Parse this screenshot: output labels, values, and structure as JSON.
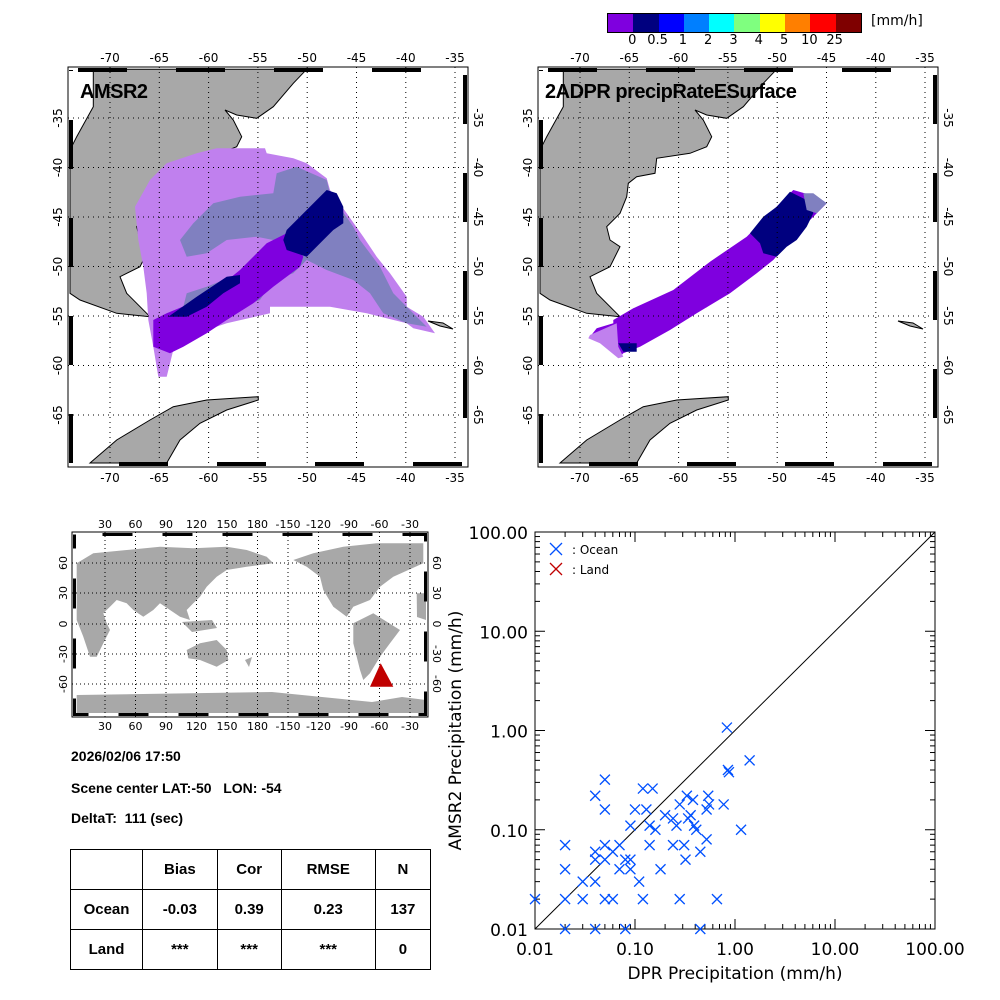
{
  "colorbar": {
    "colors": [
      "#7f00df",
      "#00007f",
      "#0000ff",
      "#007fff",
      "#00ffff",
      "#7fff7f",
      "#ffff00",
      "#ff7f00",
      "#ff0000",
      "#7f0000"
    ],
    "labels": [
      "0",
      "0.5",
      "1",
      "2",
      "3",
      "4",
      "5",
      "10",
      "25"
    ],
    "unit": "[mm/h]"
  },
  "maps": {
    "left_title": "AMSR2",
    "right_title": "2ADPR precipRateESurface",
    "lon_labels": [
      "-70",
      "-65",
      "-60",
      "-55",
      "-50",
      "-45",
      "-40",
      "-35"
    ],
    "lat_labels": [
      "-35",
      "-40",
      "-45",
      "-50",
      "-55",
      "-60",
      "-65"
    ],
    "land_color": "#a8a8a8"
  },
  "world_map": {
    "lon_labels": [
      "30",
      "60",
      "90",
      "120",
      "150",
      "180",
      "-150",
      "-120",
      "-90",
      "-60",
      "-30"
    ],
    "lat_labels": [
      "60",
      "30",
      "0",
      "-30",
      "-60"
    ],
    "marker_color": "#c00000"
  },
  "info": {
    "datetime": "2026/02/06 17:50",
    "scene_center": "Scene center LAT:-50   LON: -54",
    "delta_t": "DeltaT:  111 (sec)"
  },
  "stats_table": {
    "headers": [
      "",
      "Bias",
      "Cor",
      "RMSE",
      "N"
    ],
    "rows": [
      {
        "label": "Ocean",
        "bias": "-0.03",
        "cor": "0.39",
        "rmse": "0.23",
        "n": "137"
      },
      {
        "label": "Land",
        "bias": "***",
        "cor": "***",
        "rmse": "***",
        "n": "0"
      }
    ]
  },
  "chart_data": {
    "type": "scatter",
    "xlabel": "DPR Precipitation (mm/h)",
    "ylabel": "AMSR2 Precipitation (mm/h)",
    "x_scale": "log",
    "y_scale": "log",
    "xlim": [
      0.01,
      100
    ],
    "ylim": [
      0.01,
      100
    ],
    "xticks": [
      "0.01",
      "0.10",
      "1.00",
      "10.00",
      "100.00"
    ],
    "yticks": [
      "0.01",
      "0.10",
      "1.00",
      "10.00",
      "100.00"
    ],
    "reference_line": "1:1",
    "legend_position": "top-left",
    "series": [
      {
        "name": ": Ocean",
        "color": "#0050ff",
        "marker": "x",
        "points": [
          [
            0.01,
            0.02
          ],
          [
            0.02,
            0.01
          ],
          [
            0.02,
            0.02
          ],
          [
            0.02,
            0.04
          ],
          [
            0.02,
            0.07
          ],
          [
            0.03,
            0.02
          ],
          [
            0.03,
            0.03
          ],
          [
            0.04,
            0.03
          ],
          [
            0.04,
            0.01
          ],
          [
            0.04,
            0.05
          ],
          [
            0.04,
            0.06
          ],
          [
            0.04,
            0.22
          ],
          [
            0.05,
            0.32
          ],
          [
            0.05,
            0.16
          ],
          [
            0.05,
            0.07
          ],
          [
            0.05,
            0.05
          ],
          [
            0.05,
            0.02
          ],
          [
            0.06,
            0.02
          ],
          [
            0.06,
            0.06
          ],
          [
            0.07,
            0.07
          ],
          [
            0.07,
            0.04
          ],
          [
            0.08,
            0.05
          ],
          [
            0.08,
            0.01
          ],
          [
            0.09,
            0.04
          ],
          [
            0.09,
            0.05
          ],
          [
            0.09,
            0.11
          ],
          [
            0.1,
            0.16
          ],
          [
            0.11,
            0.03
          ],
          [
            0.12,
            0.02
          ],
          [
            0.12,
            0.26
          ],
          [
            0.13,
            0.16
          ],
          [
            0.14,
            0.11
          ],
          [
            0.14,
            0.07
          ],
          [
            0.15,
            0.26
          ],
          [
            0.16,
            0.1
          ],
          [
            0.18,
            0.04
          ],
          [
            0.2,
            0.14
          ],
          [
            0.24,
            0.07
          ],
          [
            0.24,
            0.13
          ],
          [
            0.26,
            0.11
          ],
          [
            0.28,
            0.18
          ],
          [
            0.28,
            0.02
          ],
          [
            0.31,
            0.07
          ],
          [
            0.32,
            0.05
          ],
          [
            0.33,
            0.22
          ],
          [
            0.34,
            0.13
          ],
          [
            0.36,
            0.14
          ],
          [
            0.38,
            0.2
          ],
          [
            0.39,
            0.11
          ],
          [
            0.41,
            0.1
          ],
          [
            0.45,
            0.06
          ],
          [
            0.45,
            0.01
          ],
          [
            0.52,
            0.08
          ],
          [
            0.52,
            0.16
          ],
          [
            0.54,
            0.22
          ],
          [
            0.55,
            0.18
          ],
          [
            0.66,
            0.02
          ],
          [
            0.77,
            0.18
          ],
          [
            0.85,
            0.4
          ],
          [
            0.87,
            0.38
          ],
          [
            0.83,
            1.07
          ],
          [
            1.15,
            0.1
          ],
          [
            1.4,
            0.5
          ]
        ]
      },
      {
        "name": ": Land",
        "color": "#c00000",
        "marker": "x",
        "points": []
      }
    ]
  }
}
